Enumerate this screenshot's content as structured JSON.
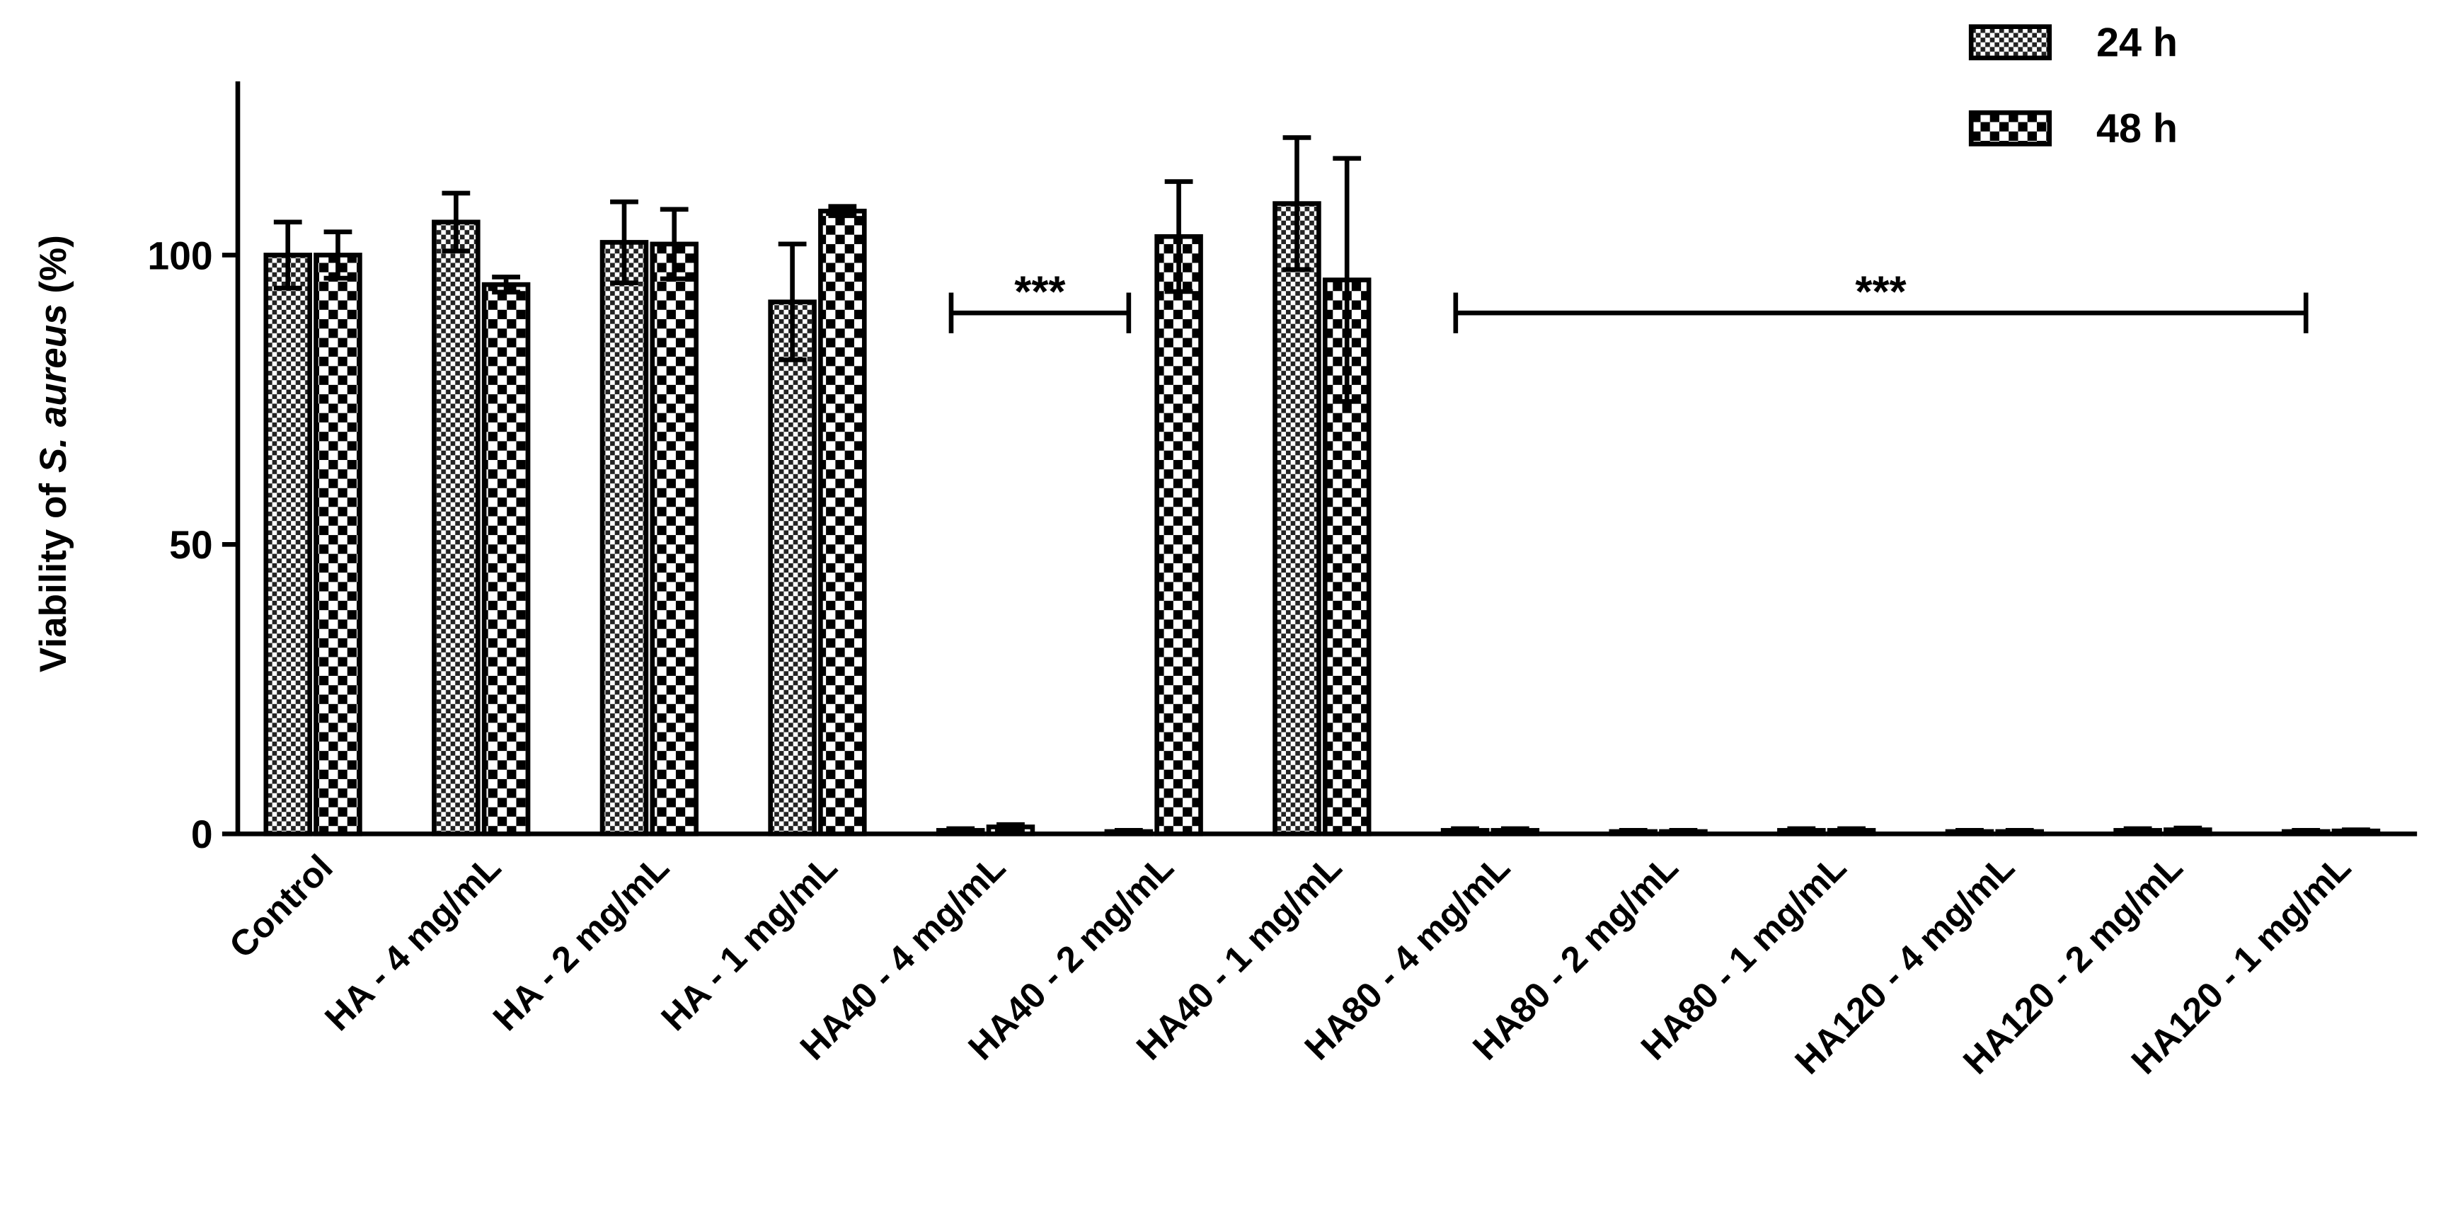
{
  "chart_data": {
    "type": "bar",
    "y_label": {
      "prefix": "Viability of ",
      "italic": "S. aureus",
      "suffix": " (%)"
    },
    "categories": [
      "Control",
      "HA - 4 mg/mL",
      "HA - 2 mg/mL",
      "HA - 1 mg/mL",
      "HA40 - 4 mg/mL",
      "HA40 - 2 mg/mL",
      "HA40 - 1 mg/mL",
      "HA80 - 4 mg/mL",
      "HA80 - 2 mg/mL",
      "HA80 - 1 mg/mL",
      "HA120 - 4 mg/mL",
      "HA120 - 2 mg/mL",
      "HA120 - 1 mg/mL"
    ],
    "series": [
      {
        "name": "24 h",
        "color": "#000000",
        "pattern": "fine",
        "values": [
          100,
          105.7,
          102.2,
          91.9,
          0.6,
          0.4,
          108.9,
          0.6,
          0.4,
          0.6,
          0.4,
          0.6,
          0.4
        ],
        "errors": [
          5.7,
          5,
          7,
          10,
          0.3,
          0.2,
          11.4,
          0.3,
          0.2,
          0.3,
          0.2,
          0.3,
          0.2
        ]
      },
      {
        "name": "48 h",
        "color": "#000000",
        "pattern": "coarse",
        "values": [
          100,
          94.9,
          101.9,
          107.6,
          1.2,
          103.2,
          95.7,
          0.6,
          0.4,
          0.6,
          0.4,
          0.7,
          0.5
        ],
        "errors": [
          4,
          1.3,
          6,
          0.8,
          0.4,
          9.5,
          21,
          0.3,
          0.2,
          0.3,
          0.2,
          0.3,
          0.2
        ]
      }
    ],
    "ylim": [
      0,
      130
    ],
    "yticks": [
      0,
      50,
      100
    ],
    "legend": "top-right",
    "annotations": [
      {
        "label": "***",
        "from": "HA40 - 4 mg/mL",
        "to": "HA40 - 2 mg/mL"
      },
      {
        "label": "***",
        "from": "HA80 - 4 mg/mL",
        "to": "HA120 - 1 mg/mL"
      }
    ]
  }
}
